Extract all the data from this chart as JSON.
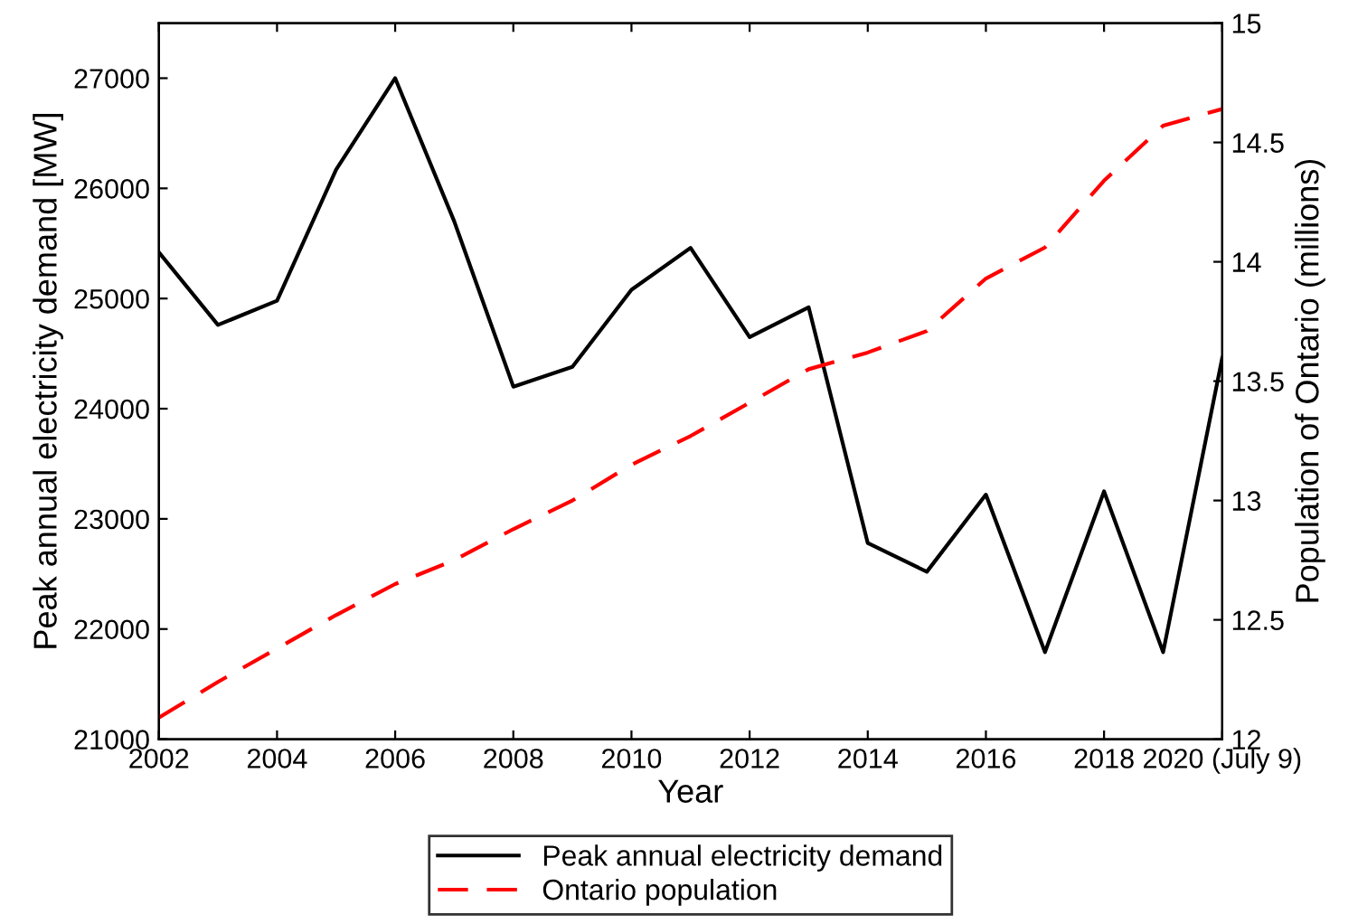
{
  "chart_data": {
    "type": "line",
    "xlabel": "Year",
    "ylabel": "Peak annual electricity demand [MW]",
    "y2label": "Population of Ontario (millions)",
    "x": [
      2002,
      2003,
      2004,
      2005,
      2006,
      2007,
      2008,
      2009,
      2010,
      2011,
      2012,
      2013,
      2014,
      2015,
      2016,
      2017,
      2018,
      2019,
      2020
    ],
    "series": [
      {
        "name": "Peak annual electricity demand",
        "color": "#000000",
        "line_style": "solid",
        "values": [
          25420,
          24760,
          24980,
          26170,
          27000,
          25700,
          24200,
          24380,
          25080,
          25460,
          24650,
          24920,
          22780,
          22520,
          23220,
          21790,
          23250,
          21790,
          24460
        ]
      },
      {
        "name": "Ontario population",
        "color": "#ff0000",
        "line_style": "dashed",
        "axis": "y2",
        "values": [
          12.09,
          12.24,
          12.38,
          12.52,
          12.65,
          12.75,
          12.88,
          13.0,
          13.15,
          13.27,
          13.41,
          13.55,
          13.62,
          13.71,
          13.93,
          14.06,
          14.34,
          14.57,
          14.64
        ]
      }
    ],
    "xlim": [
      2002,
      2020
    ],
    "xticks": [
      2002,
      2004,
      2006,
      2008,
      2010,
      2012,
      2014,
      2016,
      2018,
      {
        "value": 2020,
        "label": "2020 (July 9)"
      }
    ],
    "ylim": [
      21000,
      27500
    ],
    "yticks": [
      21000,
      22000,
      23000,
      24000,
      25000,
      26000,
      27000
    ],
    "y2lim": [
      12,
      15
    ],
    "y2ticks": [
      12,
      12.5,
      13,
      13.5,
      14,
      14.5,
      15
    ],
    "grid": false,
    "legend": "bottom",
    "marker": "none"
  }
}
